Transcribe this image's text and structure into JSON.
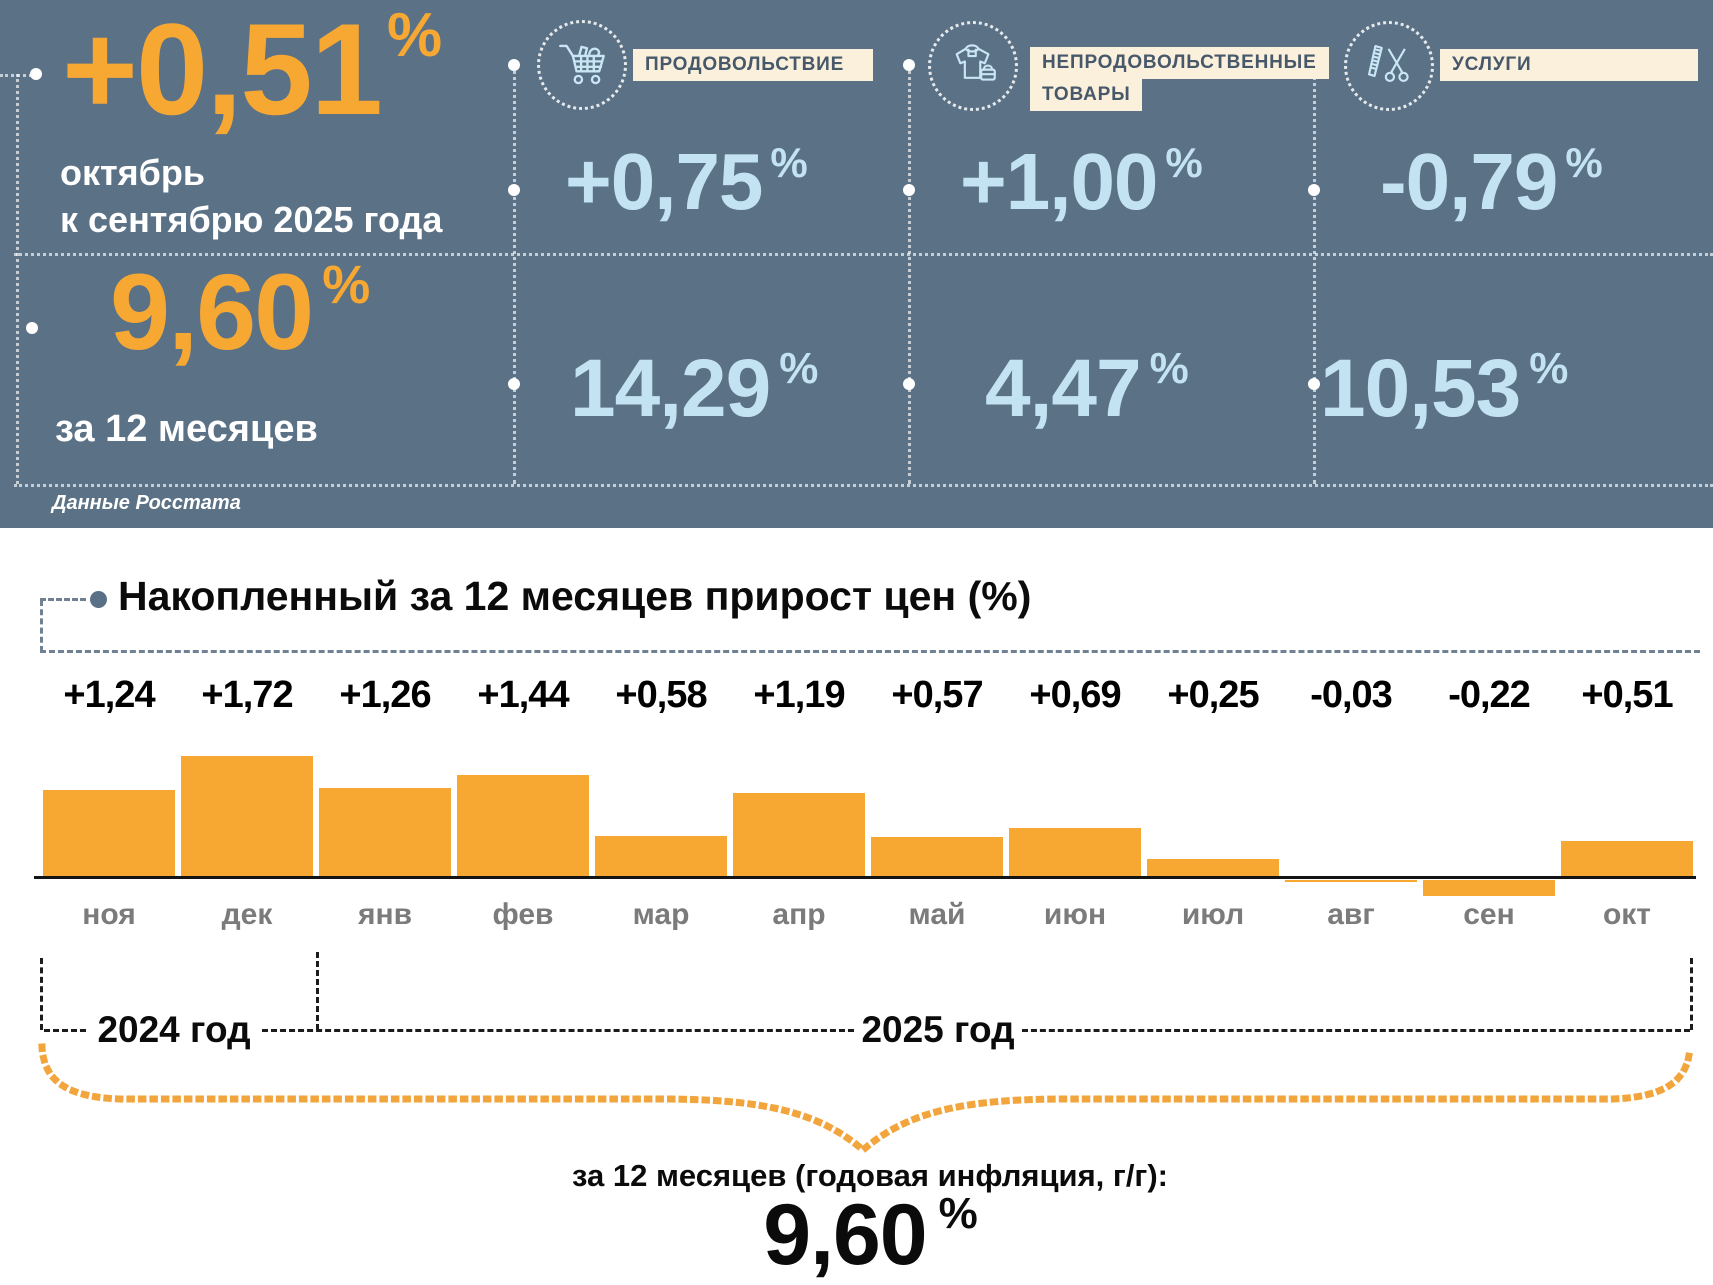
{
  "header": {
    "main": {
      "value": "+0,51",
      "percent": "%",
      "period": "октябрь\nк сентябрю 2025 года"
    },
    "annual": {
      "value": "9,60",
      "percent": "%",
      "label": "за 12 месяцев"
    },
    "source": "Данные Росстата",
    "categories": [
      {
        "icon": "shopping-cart-icon",
        "name": "ПРОДОВОЛЬСТВИЕ",
        "name_line2": "",
        "monthly": "+0,75",
        "annual": "14,29",
        "percent": "%"
      },
      {
        "icon": "clothing-bag-icon",
        "name": "НЕПРОДОВОЛЬСТВЕННЫЕ",
        "name_line2": "ТОВАРЫ",
        "monthly": "+1,00",
        "annual": "4,47",
        "percent": "%"
      },
      {
        "icon": "scissors-comb-icon",
        "name": "УСЛУГИ",
        "name_line2": "",
        "monthly": "-0,79",
        "annual": "10,53",
        "percent": "%"
      }
    ]
  },
  "chart_data": {
    "type": "bar",
    "title": "Накопленный за 12 месяцев прирост цен (%)",
    "categories": [
      "ноя",
      "дек",
      "янв",
      "фев",
      "мар",
      "апр",
      "май",
      "июн",
      "июл",
      "авг",
      "сен",
      "окт"
    ],
    "values": [
      1.24,
      1.72,
      1.26,
      1.44,
      0.58,
      1.19,
      0.57,
      0.69,
      0.25,
      -0.03,
      -0.22,
      0.51
    ],
    "labels": [
      "+1,24",
      "+1,72",
      "+1,26",
      "+1,44",
      "+0,58",
      "+1,19",
      "+0,57",
      "+0,69",
      "+0,25",
      "-0,03",
      "-0,22",
      "+0,51"
    ],
    "bar_color": "#F7A833",
    "xlabel": "",
    "ylabel": "",
    "grid": false,
    "legend": false,
    "year_groups": [
      {
        "label": "2024 год",
        "months": [
          "ноя",
          "дек"
        ]
      },
      {
        "label": "2025 год",
        "months": [
          "янв",
          "фев",
          "мар",
          "апр",
          "май",
          "июн",
          "июл",
          "авг",
          "сен",
          "окт"
        ]
      }
    ]
  },
  "footer": {
    "year_2024": "2024 год",
    "year_2025": "2025 год",
    "annual_label": "за 12 месяцев (годовая инфляция, г/г):",
    "annual_value": "9,60",
    "percent": "%"
  },
  "colors": {
    "header_bg": "#5B7186",
    "accent_orange": "#F7A833",
    "light_blue": "#C3E3F2",
    "chip_bg": "#FAF0DB"
  }
}
